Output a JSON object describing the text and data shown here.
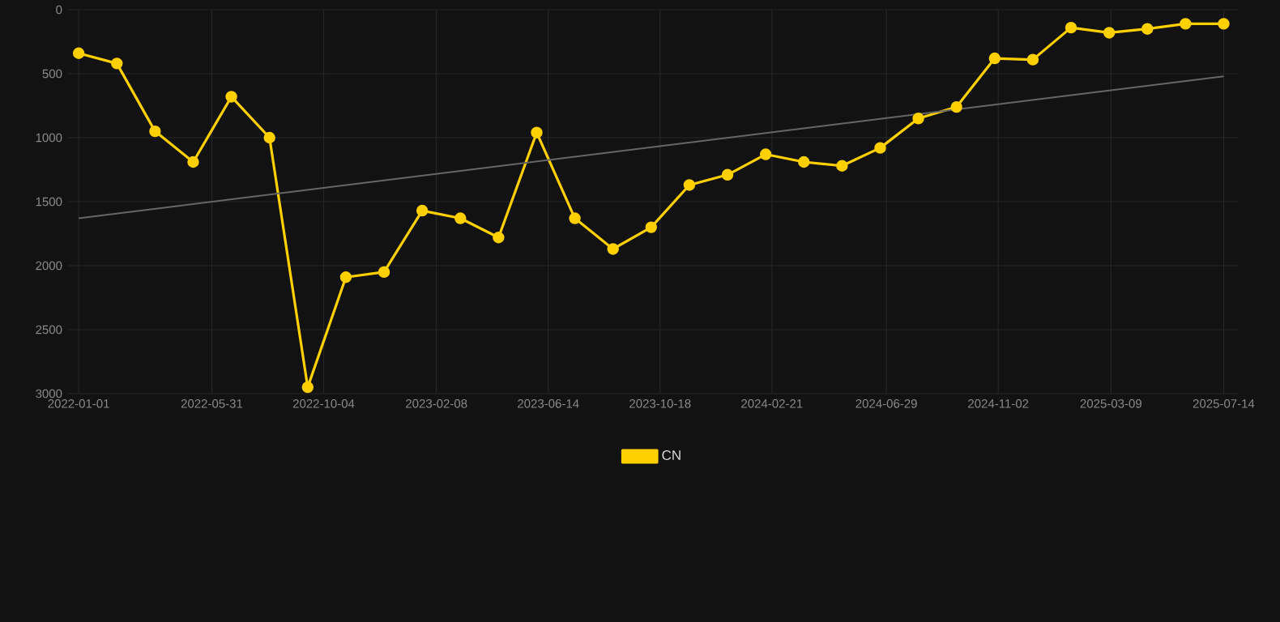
{
  "chart_data": {
    "type": "line",
    "x": [
      "2022-01-01",
      "2022-02-13",
      "2022-03-28",
      "2022-05-10",
      "2022-06-22",
      "2022-08-04",
      "2022-09-16",
      "2022-10-29",
      "2022-12-11",
      "2023-01-23",
      "2023-03-07",
      "2023-04-19",
      "2023-06-01",
      "2023-07-14",
      "2023-08-26",
      "2023-10-08",
      "2023-11-20",
      "2024-01-02",
      "2024-02-14",
      "2024-03-28",
      "2024-05-10",
      "2024-06-22",
      "2024-08-04",
      "2024-09-16",
      "2024-10-29",
      "2024-12-11",
      "2025-01-23",
      "2025-03-07",
      "2025-04-19",
      "2025-06-01",
      "2025-07-14"
    ],
    "series": [
      {
        "name": "CN",
        "color": "#ffd000",
        "values": [
          340,
          420,
          950,
          1190,
          680,
          1000,
          2950,
          2090,
          2050,
          1570,
          1630,
          1780,
          960,
          1630,
          1870,
          1700,
          1370,
          1290,
          1130,
          1190,
          1220,
          1080,
          850,
          760,
          380,
          390,
          140,
          180,
          150,
          110,
          110
        ]
      },
      {
        "type": "line",
        "color": "#666666",
        "marker": "none",
        "x": [
          "2022-01-01",
          "2025-07-14"
        ],
        "values": [
          1630,
          520
        ]
      }
    ],
    "xlim": [
      "2021-12-20",
      "2025-07-30"
    ],
    "xticks": [
      "2022-01-01",
      "2022-05-31",
      "2022-10-04",
      "2023-02-08",
      "2023-06-14",
      "2023-10-18",
      "2024-02-21",
      "2024-06-29",
      "2024-11-02",
      "2025-03-09",
      "2025-07-14"
    ],
    "ylim": [
      3000,
      0
    ],
    "yticks": [
      0,
      500,
      1000,
      1500,
      2000,
      2500,
      3000
    ],
    "grid": true,
    "legend": "bottom",
    "marker": "circle",
    "line_style": "solid"
  }
}
